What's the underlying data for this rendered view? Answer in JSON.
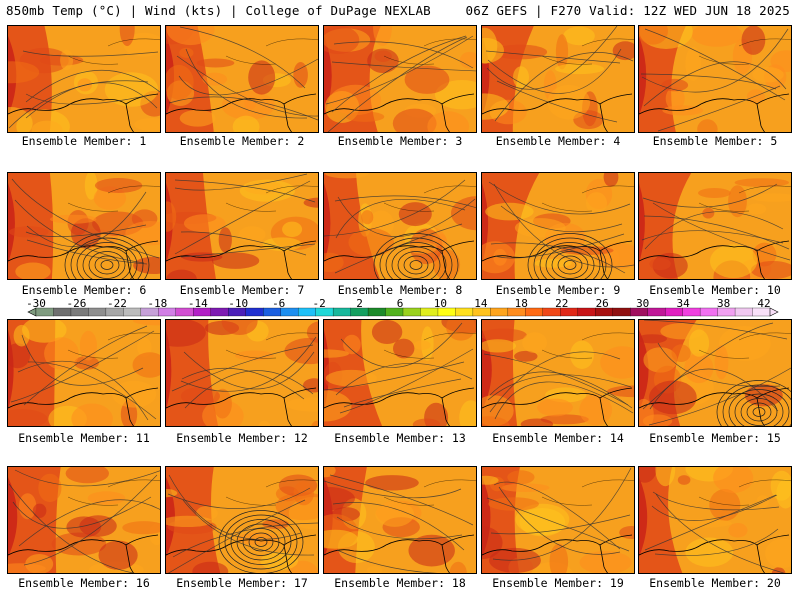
{
  "header": {
    "left": "850mb Temp (°C) | Wind (kts) | College of DuPage NEXLAB",
    "right": "06Z GEFS | F270 Valid: 12Z WED JUN 18 2025"
  },
  "panels": [
    {
      "label": "Ensemble Member: 1"
    },
    {
      "label": "Ensemble Member: 2"
    },
    {
      "label": "Ensemble Member: 3"
    },
    {
      "label": "Ensemble Member: 4"
    },
    {
      "label": "Ensemble Member: 5"
    },
    {
      "label": "Ensemble Member: 6"
    },
    {
      "label": "Ensemble Member: 7"
    },
    {
      "label": "Ensemble Member: 8"
    },
    {
      "label": "Ensemble Member: 9"
    },
    {
      "label": "Ensemble Member: 10"
    },
    {
      "label": "Ensemble Member: 11"
    },
    {
      "label": "Ensemble Member: 12"
    },
    {
      "label": "Ensemble Member: 13"
    },
    {
      "label": "Ensemble Member: 14"
    },
    {
      "label": "Ensemble Member: 15"
    },
    {
      "label": "Ensemble Member: 16"
    },
    {
      "label": "Ensemble Member: 17"
    },
    {
      "label": "Ensemble Member: 18"
    },
    {
      "label": "Ensemble Member: 19"
    },
    {
      "label": "Ensemble Member: 20"
    }
  ],
  "colorbar": {
    "ticks": [
      "-30",
      "-26",
      "-22",
      "-18",
      "-14",
      "-10",
      "-6",
      "-2",
      "2",
      "6",
      "10",
      "14",
      "18",
      "22",
      "26",
      "30",
      "34",
      "38",
      "42"
    ],
    "colors": [
      "#7f9b7f",
      "#6f6f6f",
      "#7b7b7b",
      "#8f8f8f",
      "#a7a7a7",
      "#bcbcbc",
      "#c6a0d8",
      "#d27fe6",
      "#d24fd2",
      "#b21fc6",
      "#7e1bb2",
      "#4b1fb8",
      "#2030d0",
      "#1b5fe0",
      "#1e8ff0",
      "#1fc0f8",
      "#20d8d8",
      "#18b89c",
      "#15a060",
      "#1c8a2a",
      "#52b21e",
      "#9ad21e",
      "#e0ee1e",
      "#ffff14",
      "#ffe01e",
      "#ffc31e",
      "#ffa51e",
      "#ff8c1e",
      "#ff6a14",
      "#f04818",
      "#e02818",
      "#c81418",
      "#a81010",
      "#901010",
      "#a01060",
      "#c01898",
      "#e020c0",
      "#f040e0",
      "#f070f0",
      "#f0a0f0",
      "#f0c8f0",
      "#f8e0f8"
    ]
  }
}
